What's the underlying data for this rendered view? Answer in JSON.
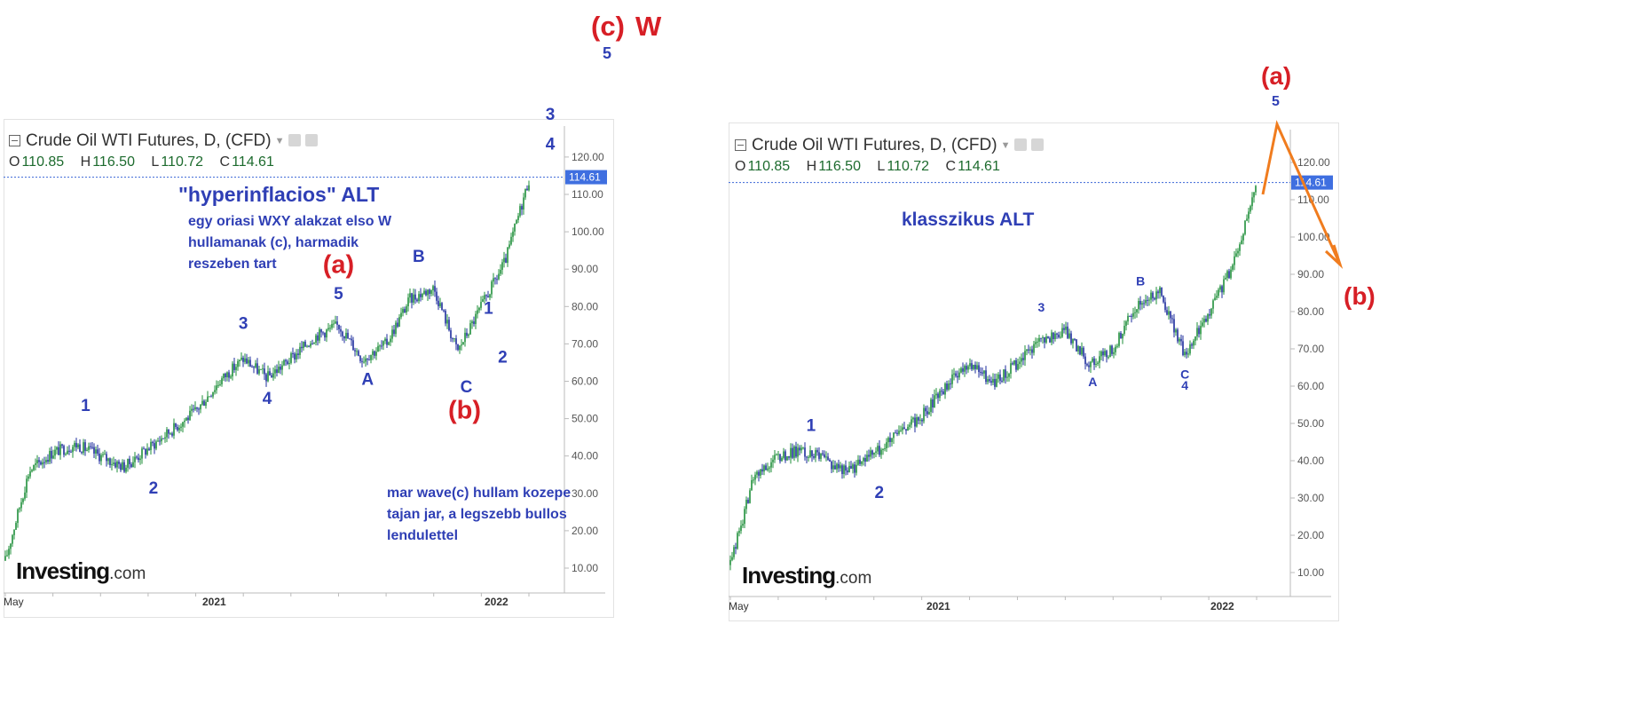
{
  "header": {
    "title": "Crude Oil WTI Futures, D, (CFD)",
    "ohlc": [
      {
        "k": "O",
        "v": "110.85"
      },
      {
        "k": "H",
        "v": "116.50"
      },
      {
        "k": "L",
        "v": "110.72"
      },
      {
        "k": "C",
        "v": "114.61"
      }
    ],
    "price_tag": "114.61"
  },
  "brand": {
    "main": "Investing",
    "dom": ".com"
  },
  "top_labels": {
    "c": "(c)",
    "w": "W",
    "five": "5"
  },
  "left": {
    "title": "\"hyperinflacios\" ALT",
    "note1": [
      "egy oriasi WXY alakzat elso W",
      "hullamanak (c), harmadik",
      "reszeben tart"
    ],
    "note2": [
      "mar wave(c) hullam kozepe",
      "tajan jar, a legszebb bullos",
      "lendulettel"
    ]
  },
  "right": {
    "title": "klasszikus ALT",
    "orange_top": "(a)",
    "orange_five": "5",
    "orange_bottom": "(b)"
  },
  "chart_data": [
    {
      "type": "line",
      "title": "Crude Oil WTI Futures, D, (CFD)",
      "xlabel": "",
      "ylabel": "",
      "ylim": [
        0,
        125
      ],
      "y_ticks": [
        10,
        20,
        30,
        40,
        50,
        60,
        70,
        80,
        90,
        100,
        110,
        120
      ],
      "x_tick_labels": [
        "May",
        "2021",
        "2022"
      ],
      "last_price": 114.61,
      "series": [
        {
          "x": [
            "2020-05",
            "2020-06",
            "2020-07",
            "2020-08",
            "2020-09",
            "2020-10",
            "2020-11",
            "2020-12",
            "2021-01",
            "2021-02",
            "2021-03",
            "2021-04",
            "2021-05",
            "2021-06",
            "2021-07",
            "2021-08",
            "2021-09",
            "2021-10",
            "2021-11",
            "2021-12",
            "2022-01",
            "2022-02",
            "2022-03"
          ],
          "values": [
            12,
            36,
            41,
            43,
            40,
            37,
            42,
            47,
            52,
            60,
            66,
            61,
            66,
            72,
            75,
            66,
            70,
            82,
            85,
            68,
            80,
            92,
            114
          ]
        }
      ],
      "wave_labels": [
        {
          "text": "1",
          "x": "2020-08",
          "y": 52
        },
        {
          "text": "2",
          "x": "2020-11",
          "y": 30
        },
        {
          "text": "3",
          "x": "2021-03",
          "y": 74
        },
        {
          "text": "4",
          "x": "2021-04",
          "y": 54
        },
        {
          "text": "5",
          "x": "2021-07",
          "y": 82
        },
        {
          "text": "(a)",
          "x": "2021-07",
          "y": 89
        },
        {
          "text": "A",
          "x": "2021-08",
          "y": 59
        },
        {
          "text": "B",
          "x": "2021-10",
          "y": 92
        },
        {
          "text": "C",
          "x": "2021-12",
          "y": 57
        },
        {
          "text": "(b)",
          "x": "2021-12",
          "y": 50
        },
        {
          "text": "1",
          "x": "2022-01",
          "y": 78
        },
        {
          "text": "2",
          "x": "2022-01",
          "y": 65
        },
        {
          "text": "3",
          "x": "2022-03",
          "y": 130
        },
        {
          "text": "4",
          "x": "2022-03",
          "y": 122
        }
      ]
    },
    {
      "type": "line",
      "title": "Crude Oil WTI Futures, D, (CFD)",
      "xlabel": "",
      "ylabel": "",
      "ylim": [
        0,
        125
      ],
      "y_ticks": [
        10,
        20,
        30,
        40,
        50,
        60,
        70,
        80,
        90,
        100,
        110,
        120
      ],
      "x_tick_labels": [
        "May",
        "2021",
        "2022"
      ],
      "last_price": 114.61,
      "series": [
        {
          "x": [
            "2020-05",
            "2020-06",
            "2020-07",
            "2020-08",
            "2020-09",
            "2020-10",
            "2020-11",
            "2020-12",
            "2021-01",
            "2021-02",
            "2021-03",
            "2021-04",
            "2021-05",
            "2021-06",
            "2021-07",
            "2021-08",
            "2021-09",
            "2021-10",
            "2021-11",
            "2021-12",
            "2022-01",
            "2022-02",
            "2022-03"
          ],
          "values": [
            12,
            36,
            41,
            43,
            40,
            37,
            42,
            47,
            52,
            60,
            66,
            61,
            66,
            72,
            75,
            66,
            70,
            82,
            85,
            68,
            80,
            92,
            114
          ]
        }
      ],
      "wave_labels": [
        {
          "text": "1",
          "x": "2020-08",
          "y": 48
        },
        {
          "text": "2",
          "x": "2020-11",
          "y": 30
        },
        {
          "text": "3",
          "x": "2021-06",
          "y": 80
        },
        {
          "text": "A",
          "x": "2021-08",
          "y": 60
        },
        {
          "text": "B",
          "x": "2021-10",
          "y": 87
        },
        {
          "text": "C",
          "x": "2021-12",
          "y": 62
        },
        {
          "text": "4",
          "x": "2021-12",
          "y": 59
        }
      ]
    }
  ]
}
